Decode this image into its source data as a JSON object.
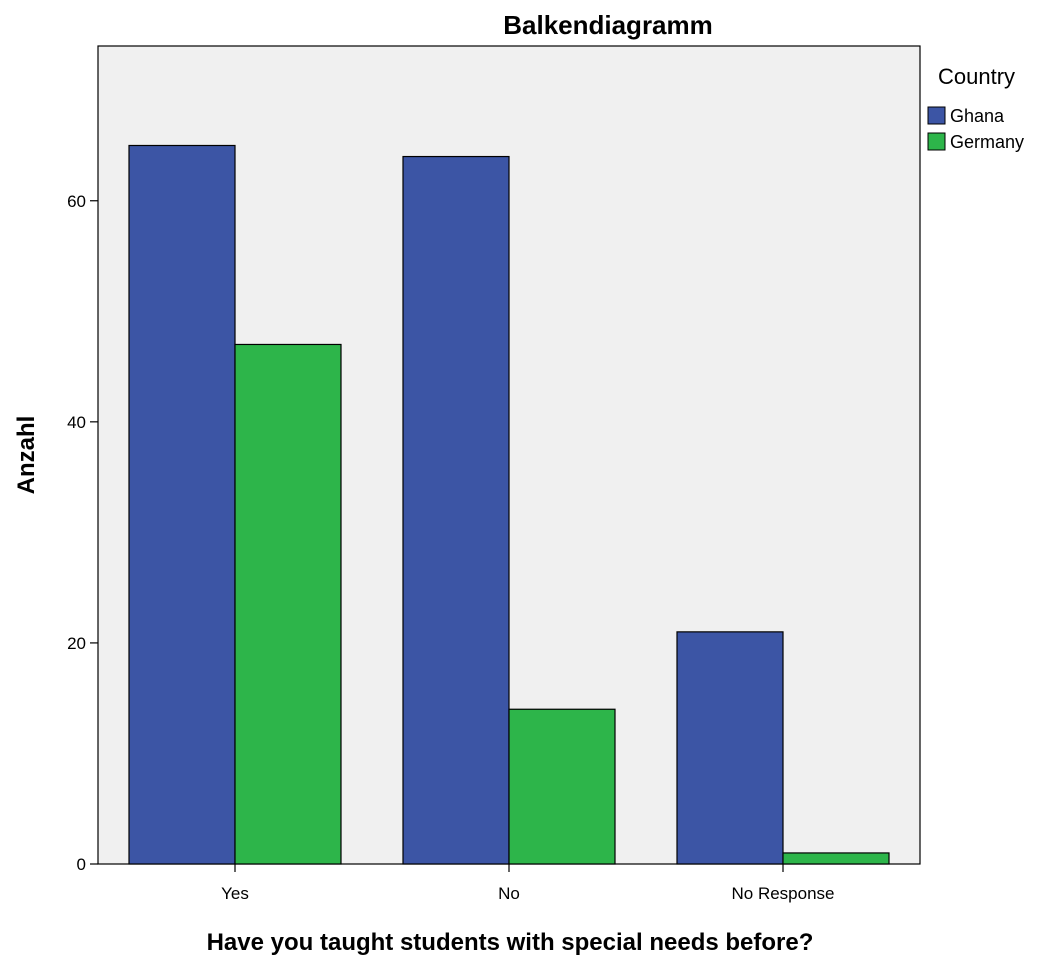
{
  "chart_data": {
    "type": "bar",
    "title": "Balkendiagramm",
    "xlabel": "Have you taught students with special needs before?",
    "ylabel": "Anzahl",
    "categories": [
      "Yes",
      "No",
      "No Response"
    ],
    "series": [
      {
        "name": "Ghana",
        "values": [
          65,
          64,
          21
        ],
        "color": "#3c55a5"
      },
      {
        "name": "Germany",
        "values": [
          47,
          14,
          1
        ],
        "color": "#2db54a"
      }
    ],
    "ylim": [
      0,
      74
    ],
    "yticks": [
      0,
      20,
      40,
      60
    ],
    "grid": false,
    "legend": {
      "title": "Country",
      "position": "right"
    },
    "plot_background": "#f0f0f0"
  }
}
